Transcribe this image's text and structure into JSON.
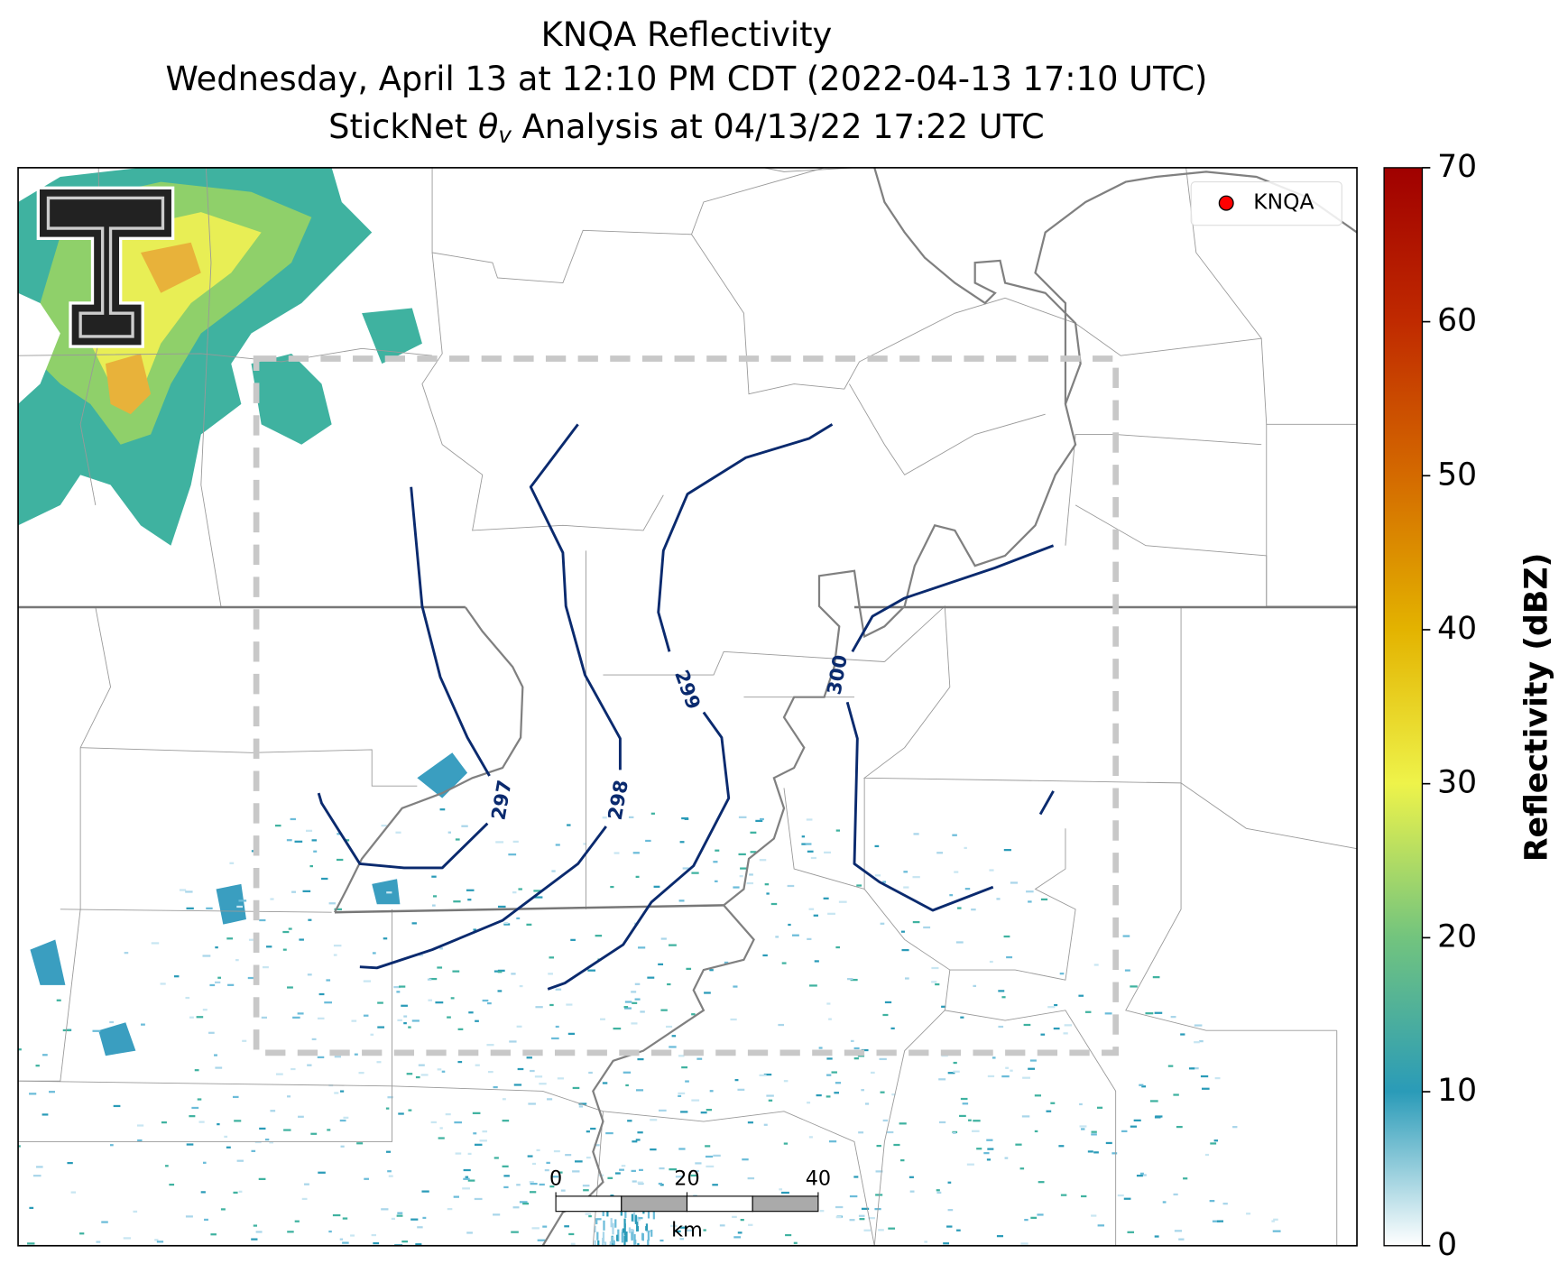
{
  "chart_data": {
    "type": "radar-map",
    "title": "KNQA Reflectivity",
    "subtitle": "Wednesday, April 13 at 12:10 PM CDT (2022-04-13 17:10 UTC)",
    "analysis_title": {
      "prefix": "StickNet ",
      "symbol": "θ",
      "subscript": "v",
      "suffix": " Analysis at 04/13/22 17:22 UTC"
    },
    "legend": {
      "label": "KNQA",
      "color": "#ff0000",
      "corner": "upper right"
    },
    "contours": {
      "color": "#0a2a6e",
      "levels": [
        297,
        298,
        299,
        300
      ]
    },
    "colorbar": {
      "label": "Reflectivity (dBZ)",
      "lim": [
        0,
        70
      ],
      "ticks": [
        0,
        10,
        20,
        30,
        40,
        50,
        60,
        70
      ],
      "colors": [
        "#ffffff",
        "#2a9bb8",
        "#72c47e",
        "#eef34a",
        "#e3b300",
        "#d46a00",
        "#c02a00",
        "#a00000"
      ]
    },
    "scale_bar": {
      "ticks": [
        0,
        20,
        40
      ],
      "lim": [
        0,
        40
      ],
      "unit": "km"
    }
  }
}
